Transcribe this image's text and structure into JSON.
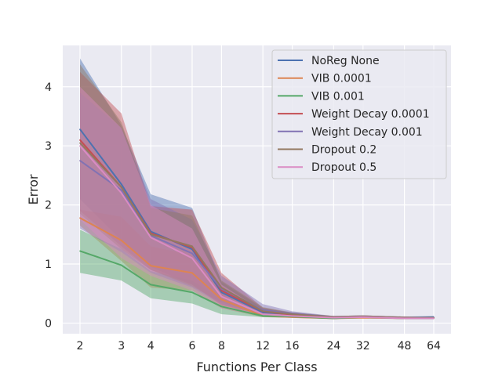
{
  "chart_data": {
    "type": "line",
    "title": "",
    "xlabel": "Functions Per Class",
    "ylabel": "Error",
    "x_scale": "log2",
    "x": [
      2,
      3,
      4,
      6,
      8,
      12,
      16,
      24,
      32,
      48,
      64
    ],
    "xticks": [
      "2",
      "3",
      "4",
      "6",
      "8",
      "12",
      "16",
      "24",
      "32",
      "48",
      "64"
    ],
    "yticks": [
      "0",
      "1",
      "2",
      "3",
      "4"
    ],
    "ylim": [
      -0.18,
      4.7
    ],
    "grid": true,
    "legend": "top-right",
    "style": {
      "background": "#eaeaf2",
      "grid_color": "#ffffff",
      "band_opacity": 0.45
    },
    "series": [
      {
        "name": "NoReg None",
        "color": "#4c72b0",
        "values": [
          3.28,
          2.35,
          1.55,
          1.25,
          0.52,
          0.18,
          0.15,
          0.1,
          0.11,
          0.09,
          0.1
        ],
        "lower": [
          2.1,
          1.4,
          0.95,
          0.65,
          0.32,
          0.13,
          0.12,
          0.08,
          0.09,
          0.08,
          0.08
        ],
        "upper": [
          4.48,
          3.35,
          2.18,
          1.95,
          0.7,
          0.25,
          0.18,
          0.12,
          0.13,
          0.11,
          0.12
        ]
      },
      {
        "name": "VIB 0.0001",
        "color": "#dd8452",
        "values": [
          1.78,
          1.4,
          0.97,
          0.85,
          0.4,
          0.12,
          0.1,
          0.08,
          0.09,
          0.08,
          0.08
        ],
        "lower": [
          1.65,
          1.05,
          0.6,
          0.55,
          0.25,
          0.1,
          0.09,
          0.07,
          0.08,
          0.07,
          0.07
        ],
        "upper": [
          1.92,
          1.8,
          1.3,
          1.15,
          0.55,
          0.15,
          0.12,
          0.09,
          0.1,
          0.09,
          0.09
        ]
      },
      {
        "name": "VIB 0.001",
        "color": "#55a868",
        "values": [
          1.22,
          0.98,
          0.65,
          0.52,
          0.28,
          0.12,
          0.11,
          0.08,
          0.1,
          0.08,
          0.08
        ],
        "lower": [
          0.85,
          0.72,
          0.42,
          0.33,
          0.15,
          0.1,
          0.09,
          0.07,
          0.08,
          0.07,
          0.07
        ],
        "upper": [
          1.58,
          1.25,
          0.88,
          0.72,
          0.4,
          0.14,
          0.13,
          0.09,
          0.11,
          0.09,
          0.09
        ]
      },
      {
        "name": "Weight Decay 0.0001",
        "color": "#c44e52",
        "values": [
          3.1,
          2.3,
          1.52,
          1.28,
          0.55,
          0.2,
          0.14,
          0.1,
          0.11,
          0.09,
          0.09
        ],
        "lower": [
          1.9,
          1.3,
          0.9,
          0.65,
          0.3,
          0.14,
          0.11,
          0.08,
          0.09,
          0.08,
          0.08
        ],
        "upper": [
          4.25,
          3.55,
          1.98,
          1.92,
          0.85,
          0.26,
          0.17,
          0.12,
          0.13,
          0.11,
          0.1
        ]
      },
      {
        "name": "Weight Decay 0.001",
        "color": "#8172b3",
        "values": [
          2.75,
          2.25,
          1.48,
          1.18,
          0.58,
          0.22,
          0.16,
          0.1,
          0.11,
          0.09,
          0.09
        ],
        "lower": [
          1.6,
          1.2,
          0.85,
          0.6,
          0.32,
          0.15,
          0.12,
          0.08,
          0.09,
          0.08,
          0.08
        ],
        "upper": [
          3.9,
          3.3,
          2.1,
          1.75,
          0.8,
          0.32,
          0.2,
          0.12,
          0.13,
          0.11,
          0.1
        ]
      },
      {
        "name": "Dropout 0.2",
        "color": "#937860",
        "values": [
          3.05,
          2.3,
          1.5,
          1.3,
          0.6,
          0.2,
          0.15,
          0.1,
          0.11,
          0.09,
          0.09
        ],
        "lower": [
          1.85,
          1.25,
          0.9,
          0.62,
          0.35,
          0.14,
          0.11,
          0.08,
          0.09,
          0.08,
          0.08
        ],
        "upper": [
          4.38,
          3.4,
          1.95,
          1.82,
          0.72,
          0.27,
          0.18,
          0.12,
          0.13,
          0.11,
          0.1
        ]
      },
      {
        "name": "Dropout 0.5",
        "color": "#da8bc3",
        "values": [
          3.0,
          2.2,
          1.45,
          1.1,
          0.45,
          0.15,
          0.12,
          0.09,
          0.1,
          0.08,
          0.08
        ],
        "lower": [
          1.75,
          1.1,
          0.8,
          0.55,
          0.25,
          0.11,
          0.1,
          0.07,
          0.08,
          0.07,
          0.07
        ],
        "upper": [
          4.0,
          3.3,
          2.0,
          1.6,
          0.65,
          0.2,
          0.15,
          0.11,
          0.12,
          0.1,
          0.09
        ]
      }
    ]
  }
}
